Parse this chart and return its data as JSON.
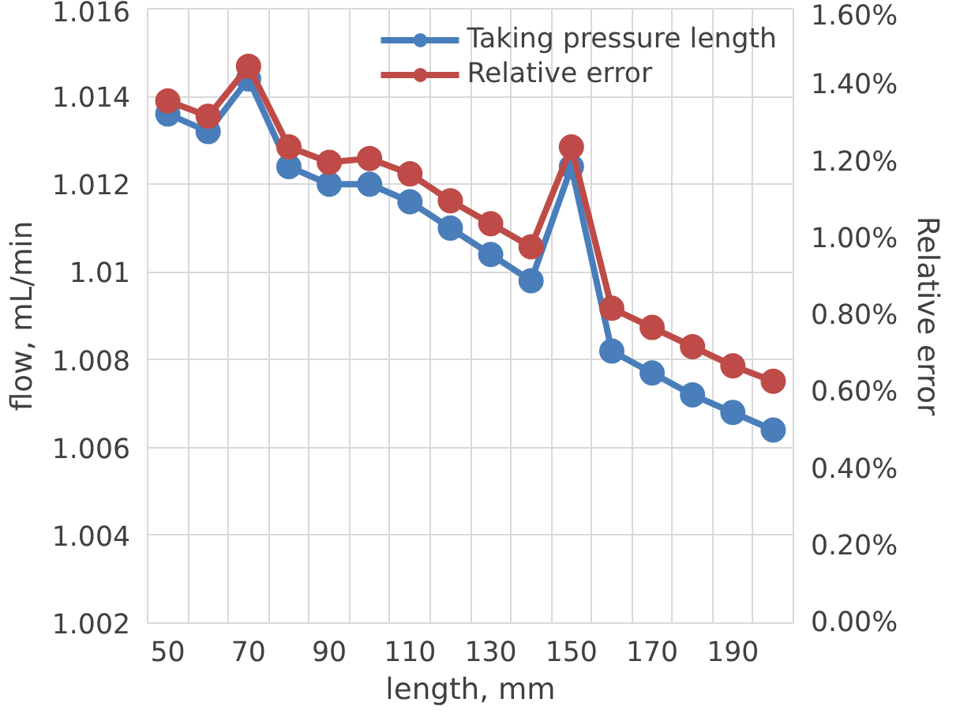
{
  "chart_data": {
    "type": "line",
    "xlabel": "length, mm",
    "ylabel": "flow, mL/min",
    "y2label": "Relative error",
    "categories": [
      "50",
      null,
      "70",
      null,
      "90",
      null,
      "110",
      null,
      "130",
      null,
      "150",
      null,
      "170",
      null,
      "190",
      null
    ],
    "series": [
      {
        "name": "Taking pressure length",
        "color": "#4a7ebb",
        "values": [
          1.0136,
          1.0132,
          1.0144,
          1.0124,
          1.012,
          1.012,
          1.0116,
          1.011,
          1.0104,
          1.0098,
          1.0124,
          1.0082,
          1.0077,
          1.0072,
          1.0068,
          1.0064
        ]
      },
      {
        "name": "Relative error",
        "color": "#be4b48",
        "axis": "y2",
        "values": [
          1.36,
          1.32,
          1.45,
          1.24,
          1.2,
          1.21,
          1.17,
          1.1,
          1.04,
          0.98,
          1.24,
          0.82,
          0.77,
          0.72,
          0.67,
          0.63
        ]
      }
    ],
    "ylim": [
      1.002,
      1.016
    ],
    "yticks": [
      1.002,
      1.004,
      1.006,
      1.008,
      {
        "value": 1.01,
        "label": "1.01"
      },
      1.012,
      1.014,
      1.016
    ],
    "y2lim": [
      0,
      1.6
    ],
    "y2ticks": [
      {
        "value": 0,
        "label": "0.00%"
      },
      {
        "value": 0.2,
        "label": "0.20%"
      },
      {
        "value": 0.4,
        "label": "0.40%"
      },
      {
        "value": 0.6,
        "label": "0.60%"
      },
      {
        "value": 0.8,
        "label": "0.80%"
      },
      {
        "value": 1.0,
        "label": "1.00%"
      },
      {
        "value": 1.2,
        "label": "1.20%"
      },
      {
        "value": 1.4,
        "label": "1.40%"
      },
      {
        "value": 1.6,
        "label": "1.60%"
      }
    ],
    "grid": true,
    "legend": "top right",
    "marker": "circle",
    "line_style": "solid"
  }
}
